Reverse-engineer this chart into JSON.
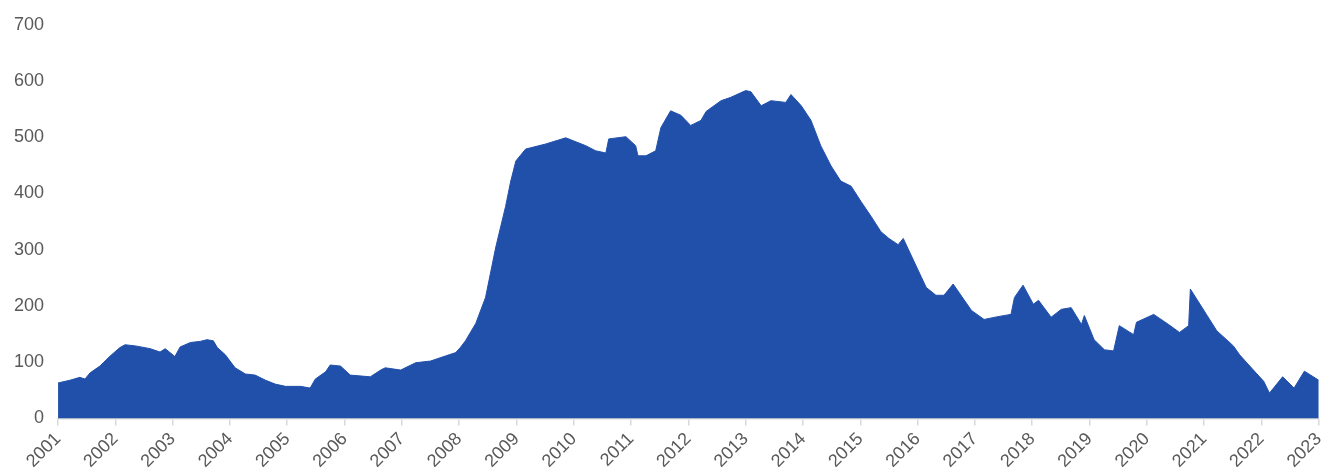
{
  "chart_data": {
    "type": "area",
    "color": "#2150ab",
    "grid": false,
    "legend": false,
    "x": [
      2001,
      2001.21,
      2001.38,
      2001.47,
      2001.56,
      2001.73,
      2001.91,
      2002.08,
      2002.17,
      2002.35,
      2002.61,
      2002.78,
      2002.87,
      2003.04,
      2003.13,
      2003.31,
      2003.48,
      2003.6,
      2003.71,
      2003.78,
      2003.92,
      2004.09,
      2004.27,
      2004.44,
      2004.62,
      2004.79,
      2004.97,
      2005.23,
      2005.4,
      2005.49,
      2005.67,
      2005.75,
      2005.93,
      2006.1,
      2006.45,
      2006.63,
      2006.71,
      2006.98,
      2007.24,
      2007.5,
      2007.76,
      2007.94,
      2008.02,
      2008.11,
      2008.29,
      2008.46,
      2008.64,
      2008.81,
      2008.9,
      2008.99,
      2009.16,
      2009.51,
      2009.86,
      2010.21,
      2010.38,
      2010.56,
      2010.61,
      2010.91,
      2011.08,
      2011.12,
      2011.26,
      2011.43,
      2011.52,
      2011.69,
      2011.87,
      2012.04,
      2012.22,
      2012.31,
      2012.57,
      2012.74,
      2013,
      2013.09,
      2013.27,
      2013.44,
      2013.7,
      2013.79,
      2013.97,
      2014.14,
      2014.31,
      2014.49,
      2014.66,
      2014.84,
      2015.01,
      2015.19,
      2015.36,
      2015.5,
      2015.66,
      2015.75,
      2016.15,
      2016.32,
      2016.46,
      2016.62,
      2016.94,
      2017.16,
      2017.4,
      2017.63,
      2017.69,
      2017.84,
      2018.02,
      2018.11,
      2018.33,
      2018.51,
      2018.68,
      2018.86,
      2018.91,
      2019.08,
      2019.26,
      2019.42,
      2019.52,
      2019.77,
      2019.82,
      2020.12,
      2020.38,
      2020.57,
      2020.73,
      2020.76,
      2021.04,
      2021.22,
      2021.51,
      2021.62,
      2021.86,
      2022.04,
      2022.14,
      2022.37,
      2022.57,
      2022.75,
      2023
    ],
    "values": [
      63,
      68,
      73,
      70,
      81,
      93,
      111,
      126,
      131,
      129,
      124,
      118,
      124,
      110,
      127,
      135,
      137,
      140,
      138,
      126,
      113,
      90,
      79,
      77,
      68,
      61,
      57,
      57,
      54,
      70,
      83,
      95,
      93,
      77,
      74,
      86,
      90,
      86,
      99,
      102,
      111,
      117,
      126,
      138,
      169,
      215,
      305,
      377,
      422,
      458,
      479,
      488,
      499,
      485,
      476,
      472,
      497,
      501,
      485,
      467,
      467,
      476,
      517,
      547,
      539,
      521,
      530,
      546,
      565,
      571,
      583,
      581,
      556,
      565,
      562,
      576,
      556,
      530,
      485,
      449,
      422,
      413,
      386,
      359,
      332,
      320,
      309,
      320,
      233,
      219,
      219,
      239,
      192,
      176,
      181,
      185,
      215,
      237,
      203,
      210,
      180,
      194,
      197,
      167,
      183,
      140,
      122,
      120,
      165,
      149,
      171,
      185,
      167,
      153,
      165,
      230,
      185,
      156,
      129,
      113,
      86,
      66,
      45,
      74,
      54,
      84,
      68
    ],
    "xlim": [
      2001,
      2023
    ],
    "xticks": [
      2001,
      2002,
      2003,
      2004,
      2005,
      2006,
      2007,
      2008,
      2009,
      2010,
      2011,
      2012,
      2013,
      2014,
      2015,
      2016,
      2017,
      2018,
      2019,
      2020,
      2021,
      2022,
      2023
    ],
    "ylim": [
      0,
      700
    ],
    "yticks": [
      0,
      100,
      200,
      300,
      400,
      500,
      600,
      700
    ]
  }
}
